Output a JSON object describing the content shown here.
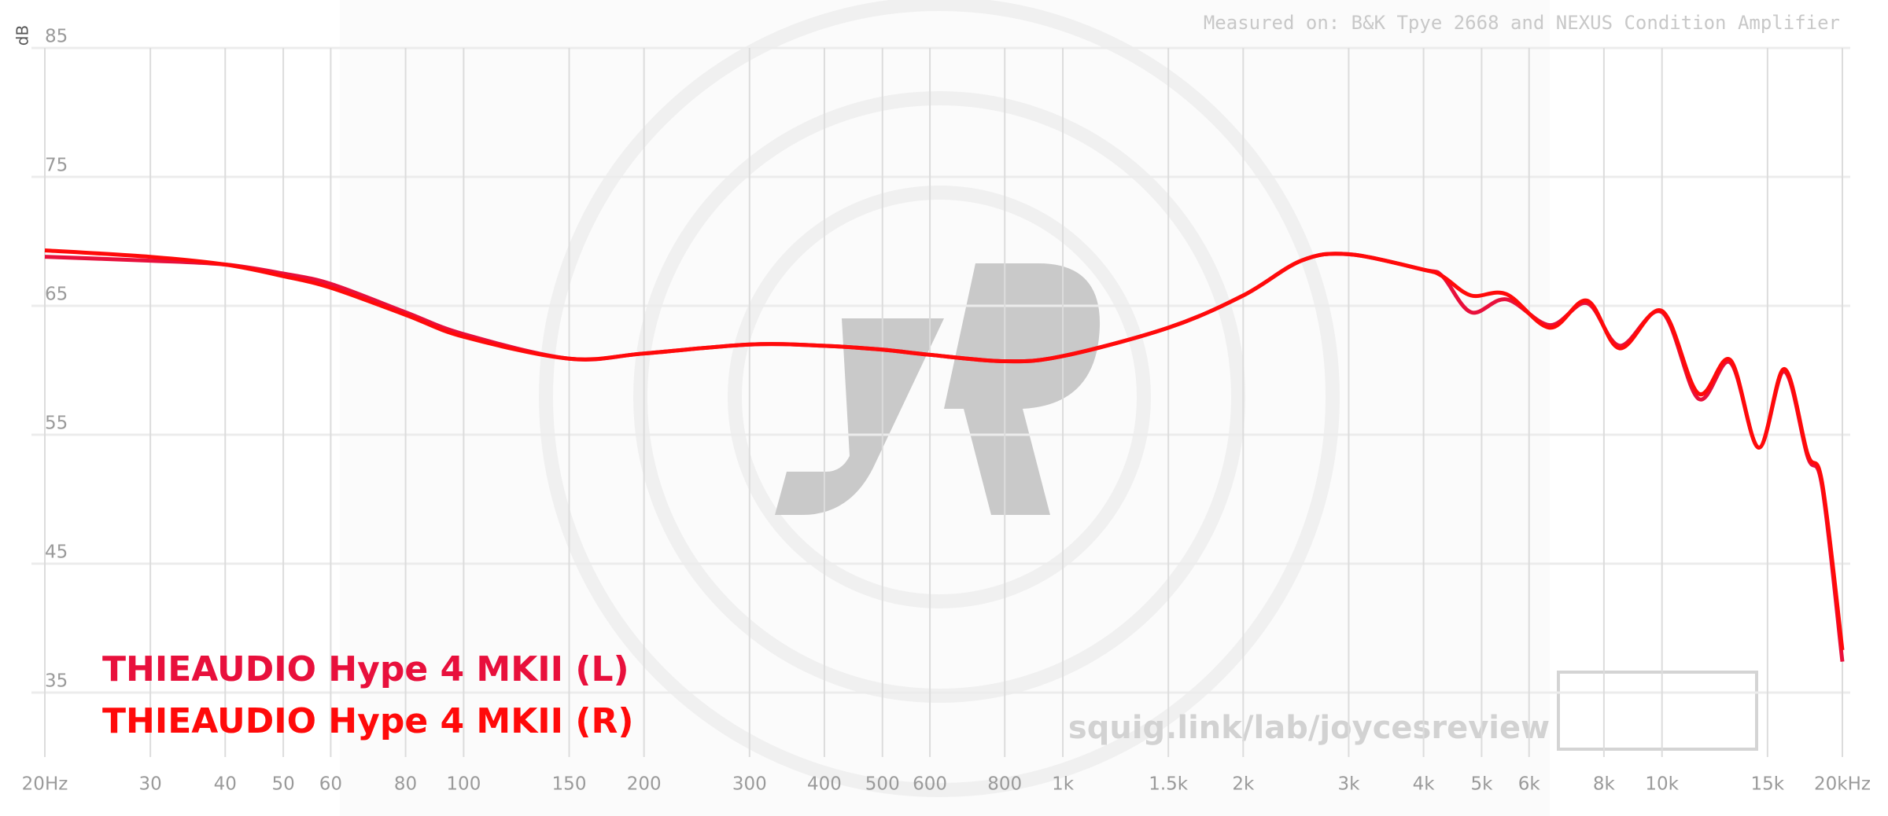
{
  "chart_data": {
    "type": "line",
    "y_label": "dB",
    "annotation": "Measured on: B&K Tpye 2668 and NEXUS Condition Amplifier",
    "watermark": "squig.link/lab/joycesreview",
    "x_scale": "log",
    "grid": true,
    "legend": "bottom-left",
    "xlim": [
      20,
      20000
    ],
    "ylim": [
      30,
      85
    ],
    "yticks": [
      35,
      45,
      55,
      65,
      75,
      85
    ],
    "xticks": [
      {
        "value": 20,
        "label": "20Hz"
      },
      30,
      40,
      50,
      60,
      80,
      100,
      150,
      200,
      300,
      400,
      500,
      600,
      800,
      {
        "value": 1000,
        "label": "1k"
      },
      {
        "value": 1500,
        "label": "1.5k"
      },
      {
        "value": 2000,
        "label": "2k"
      },
      {
        "value": 3000,
        "label": "3k"
      },
      {
        "value": 4000,
        "label": "4k"
      },
      {
        "value": 5000,
        "label": "5k"
      },
      {
        "value": 6000,
        "label": "6k"
      },
      {
        "value": 8000,
        "label": "8k"
      },
      {
        "value": 10000,
        "label": "10k"
      },
      {
        "value": 15000,
        "label": "15k"
      },
      {
        "value": 20000,
        "label": "20kHz"
      }
    ],
    "x": [
      20,
      30,
      40,
      50,
      60,
      80,
      100,
      150,
      200,
      300,
      400,
      500,
      600,
      800,
      1000,
      1500,
      2000,
      2500,
      3000,
      4000,
      4300,
      4800,
      5500,
      6500,
      7500,
      8500,
      10000,
      11500,
      13000,
      14500,
      16000,
      17500,
      18500,
      20000
    ],
    "series": [
      {
        "name": "THIEAUDIO Hype 4 MKII (L)",
        "color": "#e8103c",
        "values": [
          68.8,
          68.5,
          68.2,
          67.5,
          66.7,
          64.5,
          62.8,
          60.9,
          61.3,
          62.0,
          61.9,
          61.6,
          61.2,
          60.7,
          61.1,
          63.3,
          65.8,
          68.5,
          69.0,
          67.8,
          67.3,
          64.5,
          65.5,
          63.5,
          65.2,
          61.9,
          64.5,
          57.8,
          60.6,
          54.0,
          59.9,
          53.3,
          51.0,
          37.4
        ]
      },
      {
        "name": "THIEAUDIO Hype 4 MKII (R)",
        "color": "#ff0a0a",
        "values": [
          69.3,
          68.8,
          68.2,
          67.3,
          66.4,
          64.3,
          62.6,
          60.9,
          61.3,
          62.0,
          61.9,
          61.6,
          61.2,
          60.7,
          61.1,
          63.3,
          65.8,
          68.5,
          69.0,
          67.8,
          67.3,
          65.8,
          65.9,
          63.3,
          65.4,
          61.7,
          64.6,
          58.2,
          60.8,
          54.0,
          60.1,
          53.5,
          51.3,
          38.3
        ]
      }
    ]
  }
}
